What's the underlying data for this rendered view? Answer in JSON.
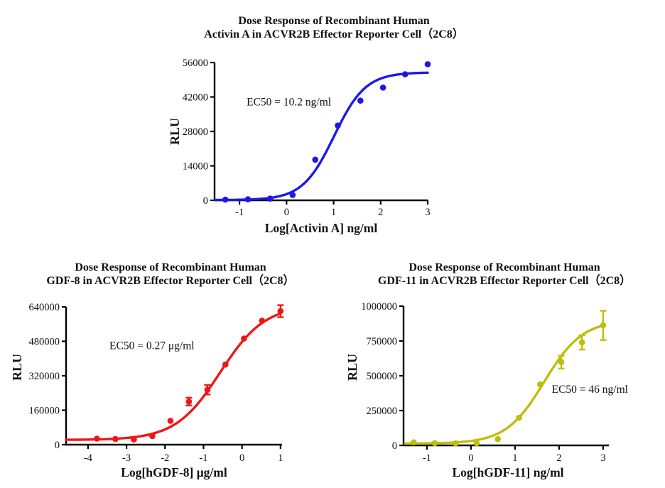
{
  "figure": {
    "background": "#ffffff"
  },
  "chart_data": [
    {
      "type": "scatter",
      "series_name": "Activin A",
      "title_line1": "Dose Response of Recombinant Human",
      "title_line2": "Activin A in ACVR2B Effector Reporter Cell（2C8）",
      "xlabel": "Log[Activin A] ng/ml",
      "ylabel": "RLU",
      "color": "#1A1AE6",
      "annotation": {
        "text": "EC50 = 10.2 ng/ml",
        "x": 0.05,
        "y": 38500
      },
      "xlim": [
        -1.53,
        3.0
      ],
      "ylim": [
        0,
        56000
      ],
      "xticks": [
        -1,
        0,
        1,
        2,
        3
      ],
      "yticks": [
        0,
        14000,
        28000,
        42000,
        56000
      ],
      "points": [
        {
          "x": -1.3,
          "y": 300
        },
        {
          "x": -0.82,
          "y": 400
        },
        {
          "x": -0.35,
          "y": 700
        },
        {
          "x": 0.13,
          "y": 2200
        },
        {
          "x": 0.61,
          "y": 16500
        },
        {
          "x": 1.09,
          "y": 30400
        },
        {
          "x": 1.57,
          "y": 40500
        },
        {
          "x": 2.05,
          "y": 45800
        },
        {
          "x": 2.52,
          "y": 51200
        },
        {
          "x": 3.0,
          "y": 55300
        }
      ],
      "fit": {
        "bottom": 100,
        "top": 52000,
        "logec50": 1.009,
        "hill": 1.3,
        "curve_range": [
          -1.53,
          3.0
        ]
      }
    },
    {
      "type": "scatter",
      "series_name": "GDF-8",
      "title_line1": "Dose Response of Recombinant Human",
      "title_line2": "GDF-8 in ACVR2B Effector Reporter Cell（2C8）",
      "xlabel": "Log[hGDF-8] μg/ml",
      "ylabel": "RLU",
      "color": "#F01616",
      "annotation": {
        "text": "EC50 = 0.27 μg/ml",
        "x": -2.34,
        "y": 443000
      },
      "xlim": [
        -4.57,
        1.04
      ],
      "ylim": [
        0,
        640000
      ],
      "xticks": [
        -4,
        -3,
        -2,
        -1,
        0,
        1
      ],
      "yticks": [
        0,
        160000,
        320000,
        480000,
        640000
      ],
      "points": [
        {
          "x": -3.77,
          "y": 28000
        },
        {
          "x": -3.29,
          "y": 26000
        },
        {
          "x": -2.81,
          "y": 24000
        },
        {
          "x": -2.33,
          "y": 40000
        },
        {
          "x": -1.86,
          "y": 111000
        },
        {
          "x": -1.38,
          "y": 200000,
          "err": 18000
        },
        {
          "x": -0.9,
          "y": 255000,
          "err": 22000
        },
        {
          "x": -0.43,
          "y": 372000
        },
        {
          "x": 0.05,
          "y": 493000
        },
        {
          "x": 0.52,
          "y": 576000
        },
        {
          "x": 1.0,
          "y": 620000,
          "err": 28000
        }
      ],
      "fit": {
        "bottom": 22000,
        "top": 648000,
        "logec50": -0.569,
        "hill": 0.75,
        "curve_range": [
          -4.57,
          1.0
        ]
      }
    },
    {
      "type": "scatter",
      "series_name": "GDF-11",
      "title_line1": "Dose Response of Recombinant Human",
      "title_line2": "GDF-11 in ACVR2B Effector Reporter Cell（2C8）",
      "xlabel": "Log[hGDF-11] ng/ml",
      "ylabel": "RLU",
      "color": "#BEBE0C",
      "annotation": {
        "text": "EC50 = 46 ng/ml",
        "x": 2.7,
        "y": 378000
      },
      "xlim": [
        -1.53,
        3.13
      ],
      "ylim": [
        0,
        1000000
      ],
      "xticks": [
        -1,
        0,
        1,
        2,
        3
      ],
      "yticks": [
        0,
        250000,
        500000,
        750000,
        1000000
      ],
      "points": [
        {
          "x": -1.3,
          "y": 22000
        },
        {
          "x": -0.82,
          "y": 16000
        },
        {
          "x": -0.35,
          "y": 15000
        },
        {
          "x": 0.13,
          "y": 16000
        },
        {
          "x": 0.61,
          "y": 45000
        },
        {
          "x": 1.09,
          "y": 198000
        },
        {
          "x": 1.57,
          "y": 438000
        },
        {
          "x": 2.05,
          "y": 598000,
          "err": 46000
        },
        {
          "x": 2.52,
          "y": 740000,
          "err": 52000
        },
        {
          "x": 3.0,
          "y": 862000,
          "err": 105000
        }
      ],
      "fit": {
        "bottom": 13000,
        "top": 900000,
        "logec50": 1.663,
        "hill": 1.0,
        "curve_range": [
          -1.5,
          3.0
        ]
      }
    }
  ]
}
